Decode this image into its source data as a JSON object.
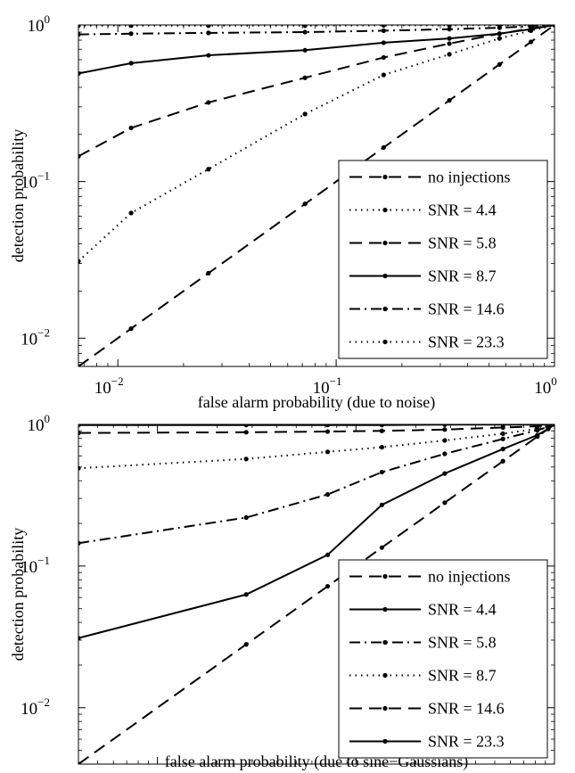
{
  "chart_data": [
    {
      "type": "line",
      "xscale": "log",
      "yscale": "log",
      "xlim": [
        0.0066,
        1
      ],
      "ylim": [
        0.0066,
        1
      ],
      "xlabel": "false alarm probability (due to noise)",
      "ylabel": "detection probability",
      "xticks": [
        {
          "value": 0.01,
          "base": "10",
          "exp": "−2"
        },
        {
          "value": 0.1,
          "base": "10",
          "exp": "−1"
        },
        {
          "value": 1,
          "base": "10",
          "exp": "0"
        }
      ],
      "yticks": [
        {
          "value": 0.01,
          "base": "10",
          "exp": "−2"
        },
        {
          "value": 0.1,
          "base": "10",
          "exp": "−1"
        },
        {
          "value": 1,
          "base": "10",
          "exp": "0"
        }
      ],
      "legend_position": "lower-right",
      "series": [
        {
          "name": "no injections",
          "style": "dashed",
          "x": [
            0.0066,
            0.0115,
            0.026,
            0.072,
            0.165,
            0.33,
            0.56,
            0.78,
            1.0
          ],
          "y": [
            0.0066,
            0.0115,
            0.026,
            0.072,
            0.165,
            0.33,
            0.56,
            0.78,
            1.0
          ]
        },
        {
          "name": "SNR = 4.4",
          "style": "dotted",
          "x": [
            0.0066,
            0.0115,
            0.026,
            0.072,
            0.165,
            0.33,
            0.56,
            0.78,
            1.0
          ],
          "y": [
            0.031,
            0.063,
            0.12,
            0.27,
            0.48,
            0.65,
            0.82,
            0.92,
            1.0
          ]
        },
        {
          "name": "SNR = 5.8",
          "style": "dashed",
          "x": [
            0.0066,
            0.0115,
            0.026,
            0.072,
            0.165,
            0.33,
            0.56,
            0.78,
            1.0
          ],
          "y": [
            0.145,
            0.22,
            0.32,
            0.46,
            0.62,
            0.76,
            0.88,
            0.95,
            1.0
          ]
        },
        {
          "name": "SNR = 8.7",
          "style": "solid",
          "x": [
            0.0066,
            0.0115,
            0.026,
            0.072,
            0.165,
            0.33,
            0.56,
            0.78,
            1.0
          ],
          "y": [
            0.49,
            0.57,
            0.64,
            0.69,
            0.77,
            0.82,
            0.88,
            0.94,
            1.0
          ]
        },
        {
          "name": "SNR = 14.6",
          "style": "dashdot",
          "x": [
            0.0066,
            0.0115,
            0.026,
            0.072,
            0.165,
            0.33,
            0.56,
            0.78,
            1.0
          ],
          "y": [
            0.87,
            0.88,
            0.89,
            0.9,
            0.92,
            0.94,
            0.96,
            0.98,
            1.0
          ]
        },
        {
          "name": "SNR = 23.3",
          "style": "dotted",
          "x": [
            0.0066,
            0.0115,
            0.026,
            0.072,
            0.165,
            0.33,
            0.56,
            0.78,
            1.0
          ],
          "y": [
            0.99,
            0.99,
            0.99,
            0.99,
            0.995,
            0.995,
            0.997,
            0.998,
            1.0
          ]
        }
      ]
    },
    {
      "type": "line",
      "xscale": "log",
      "yscale": "log",
      "xlim": [
        0.004,
        1
      ],
      "ylim": [
        0.004,
        1
      ],
      "xlabel": "false alarm probability (due to sine−Gaussians)",
      "ylabel": "detection probability",
      "xticks": [
        {
          "value": 0.01,
          "base": "10",
          "exp": "−2"
        },
        {
          "value": 0.1,
          "base": "10",
          "exp": "−1"
        },
        {
          "value": 1,
          "base": "10",
          "exp": "0"
        }
      ],
      "yticks": [
        {
          "value": 0.01,
          "base": "10",
          "exp": "−2"
        },
        {
          "value": 0.1,
          "base": "10",
          "exp": "−1"
        },
        {
          "value": 1,
          "base": "10",
          "exp": "0"
        }
      ],
      "legend_position": "lower-right",
      "series": [
        {
          "name": "no injections",
          "style": "dashed",
          "x": [
            0.004,
            0.028,
            0.072,
            0.135,
            0.28,
            0.55,
            0.82,
            0.93,
            1.0
          ],
          "y": [
            0.004,
            0.028,
            0.072,
            0.135,
            0.28,
            0.55,
            0.82,
            0.93,
            1.0
          ]
        },
        {
          "name": "SNR = 4.4",
          "style": "solid",
          "x": [
            0.004,
            0.028,
            0.072,
            0.135,
            0.28,
            0.55,
            0.82,
            0.93,
            1.0
          ],
          "y": [
            0.031,
            0.063,
            0.12,
            0.27,
            0.45,
            0.67,
            0.84,
            0.93,
            1.0
          ]
        },
        {
          "name": "SNR = 5.8",
          "style": "dashdot",
          "x": [
            0.004,
            0.028,
            0.072,
            0.135,
            0.28,
            0.55,
            0.82,
            0.93,
            1.0
          ],
          "y": [
            0.145,
            0.22,
            0.32,
            0.46,
            0.62,
            0.79,
            0.91,
            0.96,
            1.0
          ]
        },
        {
          "name": "SNR = 8.7",
          "style": "dotted",
          "x": [
            0.004,
            0.028,
            0.072,
            0.135,
            0.28,
            0.55,
            0.82,
            0.93,
            1.0
          ],
          "y": [
            0.49,
            0.57,
            0.64,
            0.69,
            0.77,
            0.86,
            0.93,
            0.97,
            1.0
          ]
        },
        {
          "name": "SNR = 14.6",
          "style": "dashed",
          "x": [
            0.004,
            0.028,
            0.072,
            0.135,
            0.28,
            0.55,
            0.82,
            0.93,
            1.0
          ],
          "y": [
            0.87,
            0.88,
            0.89,
            0.9,
            0.92,
            0.95,
            0.97,
            0.99,
            1.0
          ]
        },
        {
          "name": "SNR = 23.3",
          "style": "solid",
          "x": [
            0.004,
            0.028,
            0.072,
            0.135,
            0.28,
            0.55,
            0.82,
            0.93,
            1.0
          ],
          "y": [
            0.99,
            0.99,
            0.99,
            0.99,
            0.995,
            0.995,
            0.997,
            0.998,
            1.0
          ]
        }
      ]
    }
  ]
}
